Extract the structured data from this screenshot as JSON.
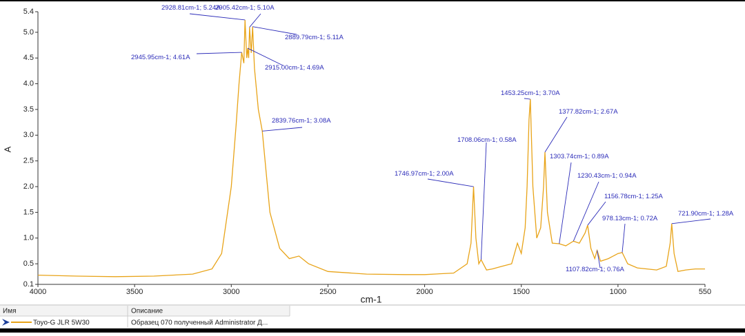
{
  "chart_data": {
    "type": "line",
    "x_label": "cm-1",
    "y_label": "A",
    "x": [
      4000,
      3800,
      3600,
      3400,
      3200,
      3100,
      3050,
      3000,
      2975,
      2960,
      2945.95,
      2935,
      2928.81,
      2920,
      2915.0,
      2910,
      2905.42,
      2897,
      2889.79,
      2880,
      2860,
      2839.76,
      2800,
      2750,
      2700,
      2650,
      2600,
      2500,
      2300,
      2100,
      2000,
      1850,
      1780,
      1760,
      1746.97,
      1735,
      1720,
      1708.06,
      1680,
      1650,
      1600,
      1550,
      1520,
      1500,
      1480,
      1470,
      1460,
      1453.25,
      1440,
      1420,
      1400,
      1385,
      1377.82,
      1365,
      1340,
      1303.74,
      1270,
      1230.43,
      1200,
      1170,
      1156.78,
      1140,
      1120,
      1107.82,
      1090,
      1050,
      1000,
      978.13,
      950,
      900,
      850,
      800,
      750,
      730,
      721.9,
      710,
      690,
      650,
      600,
      550
    ],
    "series": [
      {
        "name": "Toyo-G JLR 5W30",
        "color": "#e8a317",
        "description": "Образец 070 полученный Administrator Д...",
        "values": [
          0.28,
          0.26,
          0.25,
          0.26,
          0.3,
          0.4,
          0.7,
          2.0,
          3.2,
          4.0,
          4.61,
          4.4,
          5.24,
          4.5,
          4.69,
          4.5,
          5.1,
          4.6,
          5.11,
          4.3,
          3.5,
          3.08,
          1.5,
          0.8,
          0.6,
          0.65,
          0.5,
          0.35,
          0.3,
          0.29,
          0.29,
          0.32,
          0.5,
          0.9,
          2.0,
          1.0,
          0.5,
          0.58,
          0.38,
          0.4,
          0.45,
          0.5,
          0.9,
          0.7,
          1.2,
          2.0,
          3.3,
          3.7,
          2.0,
          1.0,
          1.2,
          2.0,
          2.67,
          1.5,
          0.9,
          0.89,
          0.85,
          0.94,
          0.9,
          1.1,
          1.25,
          0.8,
          0.6,
          0.76,
          0.55,
          0.6,
          0.7,
          0.72,
          0.5,
          0.42,
          0.4,
          0.38,
          0.45,
          0.9,
          1.28,
          0.7,
          0.35,
          0.38,
          0.4,
          0.4
        ]
      }
    ],
    "annotations": [
      {
        "text": "2928.81cm-1; 5.24A",
        "x": 2928.81,
        "y": 5.24
      },
      {
        "text": "2905.42cm-1; 5.10A",
        "x": 2905.42,
        "y": 5.1
      },
      {
        "text": "2889.79cm-1; 5.11A",
        "x": 2889.79,
        "y": 5.11
      },
      {
        "text": "2945.95cm-1; 4.61A",
        "x": 2945.95,
        "y": 4.61
      },
      {
        "text": "2915.00cm-1; 4.69A",
        "x": 2915.0,
        "y": 4.69
      },
      {
        "text": "2839.76cm-1; 3.08A",
        "x": 2839.76,
        "y": 3.08
      },
      {
        "text": "1453.25cm-1; 3.70A",
        "x": 1453.25,
        "y": 3.7
      },
      {
        "text": "1377.82cm-1; 2.67A",
        "x": 1377.82,
        "y": 2.67
      },
      {
        "text": "1708.06cm-1; 0.58A",
        "x": 1708.06,
        "y": 0.58
      },
      {
        "text": "1303.74cm-1; 0.89A",
        "x": 1303.74,
        "y": 0.89
      },
      {
        "text": "1746.97cm-1; 2.00A",
        "x": 1746.97,
        "y": 2.0
      },
      {
        "text": "1230.43cm-1; 0.94A",
        "x": 1230.43,
        "y": 0.94
      },
      {
        "text": "1156.78cm-1; 1.25A",
        "x": 1156.78,
        "y": 1.25
      },
      {
        "text": "978.13cm-1; 0.72A",
        "x": 978.13,
        "y": 0.72
      },
      {
        "text": "721.90cm-1; 1.28A",
        "x": 721.9,
        "y": 1.28
      },
      {
        "text": "1107.82cm-1; 0.76A",
        "x": 1107.82,
        "y": 0.76
      }
    ],
    "xlim": [
      4000,
      550
    ],
    "xticks": [
      4000,
      3500,
      3000,
      2500,
      2000,
      1500,
      1000,
      550
    ],
    "ylim": [
      0.1,
      5.4
    ],
    "yticks": [
      0.1,
      0.5,
      {
        "value": 1.0,
        "label": "1.0"
      },
      1.5,
      {
        "value": 2.0,
        "label": "2.0"
      },
      2.5,
      {
        "value": 3.0,
        "label": "3.0"
      },
      3.5,
      {
        "value": 4.0,
        "label": "4.0"
      },
      4.5,
      {
        "value": 5.0,
        "label": "5.0"
      },
      5.4
    ],
    "legend_columns": [
      "Имя",
      "Описание"
    ]
  }
}
